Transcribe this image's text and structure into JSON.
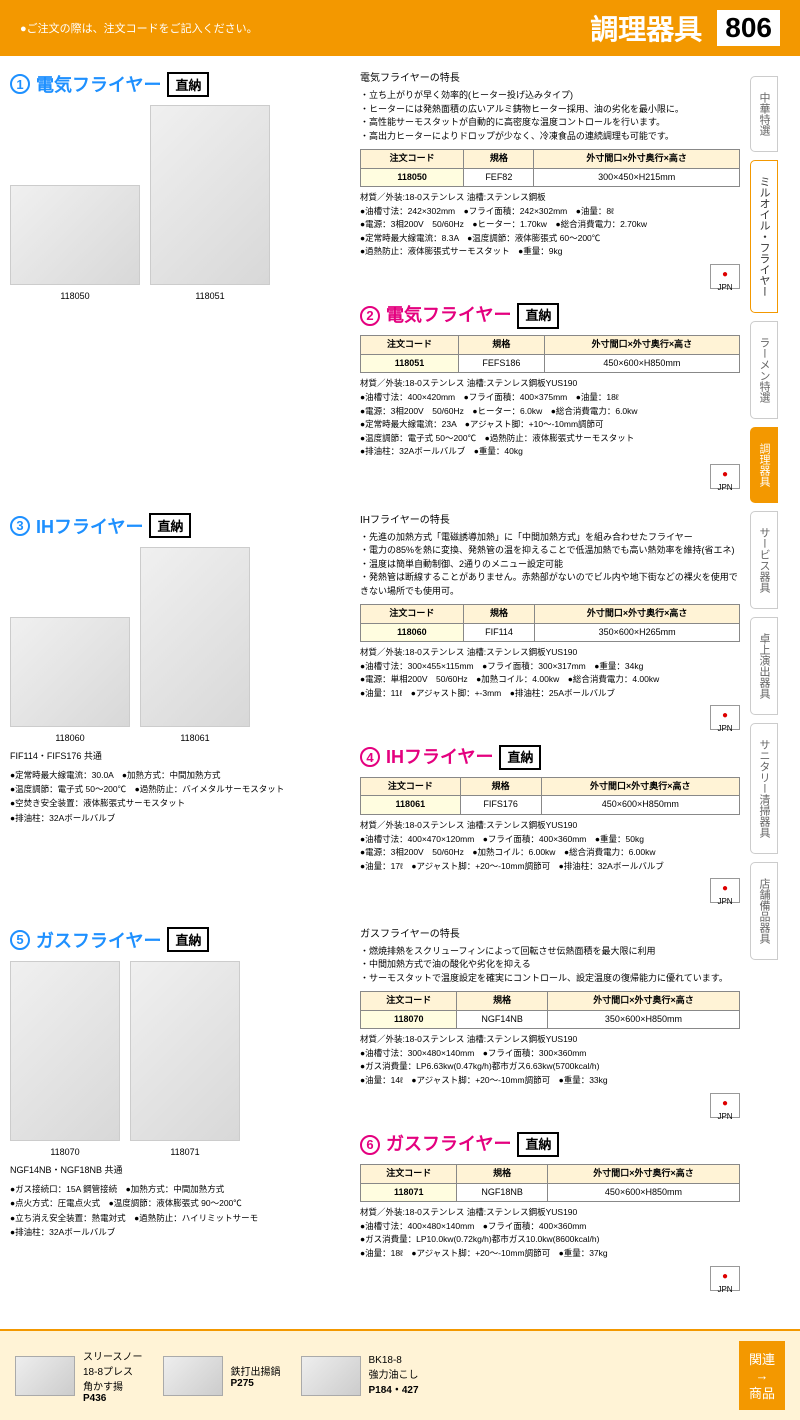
{
  "header": {
    "note": "●ご注文の際は、注文コードをご記入ください。",
    "title": "調理器具",
    "page": "806"
  },
  "sidetabs": [
    "中華特選",
    "ミルオイル・フライヤー",
    "ラーメン特選",
    "調理器具",
    "サービス器具",
    "卓上演出器具",
    "サニタリー清掃器具",
    "店舗備品器具"
  ],
  "products": [
    {
      "num": "①",
      "title": "電気フライヤー",
      "badge": "直納",
      "color": "b",
      "imgs": [
        {
          "w": 130,
          "h": 100,
          "label": "118050"
        },
        {
          "w": 120,
          "h": 180,
          "label": "118051"
        }
      ],
      "feat_title": "電気フライヤーの特長",
      "features": "・立ち上がりが早く効率的(ヒーター投げ込みタイプ)\n・ヒーターには発熱面積の広いアルミ鋳物ヒーター採用、油の劣化を最小限に。\n・高性能サーモスタットが自動的に高密度な温度コントロールを行います。\n・高出力ヒーターによりドロップが少なく、冷凍食品の連続調理も可能です。",
      "table": {
        "headers": [
          "注文コード",
          "規格",
          "外寸間口×外寸奥行×高さ"
        ],
        "rows": [
          [
            "118050",
            "FEF82",
            "300×450×H215mm"
          ]
        ]
      },
      "specs": "材質／外装:18-0ステンレス 油槽:ステンレス鋼板\n●油槽寸法：242×302mm　●フライ面積：242×302mm　●油量：8ℓ\n●電源：3相200V　50/60Hz　●ヒーター：1.70kw　●総合消費電力：2.70kw\n●定常時最大線電流：8.3A　●温度調節：液体膨張式 60～200℃\n●過熱防止：液体膨張式サーモスタット　●重量：9kg",
      "sub": {
        "num": "②",
        "title": "電気フライヤー",
        "badge": "直納",
        "color": "m",
        "table": {
          "headers": [
            "注文コード",
            "規格",
            "外寸間口×外寸奥行×高さ"
          ],
          "rows": [
            [
              "118051",
              "FEFS186",
              "450×600×H850mm"
            ]
          ]
        },
        "specs": "材質／外装:18-0ステンレス 油槽:ステンレス鋼板YUS190\n●油槽寸法：400×420mm　●フライ面積：400×375mm　●油量：18ℓ\n●電源：3相200V　50/60Hz　●ヒーター：6.0kw　●総合消費電力：6.0kw\n●定常時最大線電流：23A　●アジャスト脚：+10～-10mm調節可\n●温度調節：電子式 50～200℃　●過熱防止：液体膨張式サーモスタット\n●排油柱：32Aボールバルブ　●重量：40kg"
      }
    },
    {
      "num": "③",
      "title": "IHフライヤー",
      "badge": "直納",
      "color": "b",
      "imgs": [
        {
          "w": 120,
          "h": 110,
          "label": "118060"
        },
        {
          "w": 110,
          "h": 180,
          "label": "118061"
        }
      ],
      "img_note": "FIF114・FIFS176 共通",
      "bullets": "●定常時最大線電流：30.0A　●加熱方式：中間加熱方式\n●温度調節：電子式 50～200℃　●過熱防止：バイメタルサーモスタット\n●空焚き安全装置：液体膨張式サーモスタット\n●排油柱：32Aボールバルブ",
      "feat_title": "IHフライヤーの特長",
      "features": "・先進の加熱方式「電磁誘導加熱」に「中間加熱方式」を組み合わせたフライヤー\n・電力の85%を熱に変換、発熱管の温を抑えることで低温加熱でも高い熱効率を維持(省エネ)\n・温度は簡単自動制御、2通りのメニュー設定可能\n・発熱管は断線することがありません。赤熱部がないのでビル内や地下街などの裸火を使用できない場所でも使用可。",
      "table": {
        "headers": [
          "注文コード",
          "規格",
          "外寸間口×外寸奥行×高さ"
        ],
        "rows": [
          [
            "118060",
            "FIF114",
            "350×600×H265mm"
          ]
        ]
      },
      "specs": "材質／外装:18-0ステンレス 油槽:ステンレス鋼板YUS190\n●油槽寸法：300×455×115mm　●フライ面積：300×317mm　●重量：34kg\n●電源：単相200V　50/60Hz　●加熱コイル：4.00kw　●総合消費電力：4.00kw\n●油量：11ℓ　●アジャスト脚：+-3mm　●排油柱：25Aボールバルブ",
      "sub": {
        "num": "④",
        "title": "IHフライヤー",
        "badge": "直納",
        "color": "m",
        "table": {
          "headers": [
            "注文コード",
            "規格",
            "外寸間口×外寸奥行×高さ"
          ],
          "rows": [
            [
              "118061",
              "FIFS176",
              "450×600×H850mm"
            ]
          ]
        },
        "specs": "材質／外装:18-0ステンレス 油槽:ステンレス鋼板YUS190\n●油槽寸法：400×470×120mm　●フライ面積：400×360mm　●重量：50kg\n●電源：3相200V　50/60Hz　●加熱コイル：6.00kw　●総合消費電力：6.00kw\n●油量：17ℓ　●アジャスト脚：+20～-10mm調節可　●排油柱：32Aボールバルブ"
      }
    },
    {
      "num": "⑤",
      "title": "ガスフライヤー",
      "badge": "直納",
      "color": "b",
      "imgs": [
        {
          "w": 110,
          "h": 180,
          "label": "118070"
        },
        {
          "w": 110,
          "h": 180,
          "label": "118071"
        }
      ],
      "img_note": "NGF14NB・NGF18NB 共通",
      "bullets": "●ガス接続口：15A 鋼管接続　●加熱方式：中間加熱方式\n●点火方式：圧電点火式　●温度調節：液体膨張式 90～200℃\n●立ち消え安全装置：熱電対式　●過熱防止：ハイリミットサーモ\n●排油柱：32Aボールバルブ",
      "feat_title": "ガスフライヤーの特長",
      "features": "・燃焼排熱をスクリューフィンによって回転させ伝熱面積を最大限に利用\n・中間加熱方式で油の酸化や劣化を抑える\n・サーモスタットで温度設定を確実にコントロール、設定温度の復帰能力に優れています。",
      "table": {
        "headers": [
          "注文コード",
          "規格",
          "外寸間口×外寸奥行×高さ"
        ],
        "rows": [
          [
            "118070",
            "NGF14NB",
            "350×600×H850mm"
          ]
        ]
      },
      "specs": "材質／外装:18-0ステンレス 油槽:ステンレス鋼板YUS190\n●油槽寸法：300×480×140mm　●フライ面積：300×360mm\n●ガス消費量：LP6.63kw(0.47kg/h)都市ガス6.63kw(5700kcal/h)\n●油量：14ℓ　●アジャスト脚：+20～-10mm調節可　●重量：33kg",
      "sub": {
        "num": "⑥",
        "title": "ガスフライヤー",
        "badge": "直納",
        "color": "m",
        "table": {
          "headers": [
            "注文コード",
            "規格",
            "外寸間口×外寸奥行×高さ"
          ],
          "rows": [
            [
              "118071",
              "NGF18NB",
              "450×600×H850mm"
            ]
          ]
        },
        "specs": "材質／外装:18-0ステンレス 油槽:ステンレス鋼板YUS190\n●油槽寸法：400×480×140mm　●フライ面積：400×360mm\n●ガス消費量：LP10.0kw(0.72kg/h)都市ガス10.0kw(8600kcal/h)\n●油量：18ℓ　●アジャスト脚：+20～-10mm調節可　●重量：37kg"
      }
    }
  ],
  "footer": {
    "items": [
      {
        "name": "スリースノー\n18-8プレス\n角かす揚",
        "page": "P436"
      },
      {
        "name": "鉄打出揚鍋",
        "page": "P275"
      },
      {
        "name": "BK18-8\n強力油こし",
        "page": "P184・427"
      }
    ],
    "label": "関連\n→\n商品"
  }
}
